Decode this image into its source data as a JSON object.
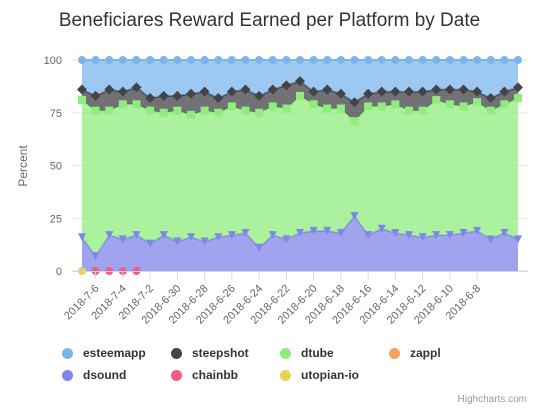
{
  "chart_data": {
    "type": "area",
    "stacking": "percent",
    "title": "Beneficiares Reward Earned per Platform by Date",
    "ylabel": "Percent",
    "ylim": [
      0,
      100
    ],
    "yticks": [
      "0",
      "25",
      "50",
      "75",
      "100"
    ],
    "xtick_labels": [
      "2018-7-6",
      "2018-7-4",
      "2018-7-2",
      "2018-6-30",
      "2018-6-28",
      "2018-6-26",
      "2018-6-24",
      "2018-6-22",
      "2018-6-20",
      "2018-6-18",
      "2018-6-16",
      "2018-6-14",
      "2018-6-12",
      "2018-6-10",
      "2018-6-8"
    ],
    "grid": true,
    "legend_position": "bottom",
    "series": [
      {
        "name": "dsound",
        "color": "#8085e9",
        "marker": "triangle-down",
        "values": [
          16,
          7,
          17,
          15,
          17,
          13,
          17,
          14,
          16,
          14,
          16,
          17,
          18,
          11,
          17,
          15,
          18,
          19,
          19,
          18,
          26,
          17,
          20,
          18,
          17,
          16,
          17,
          17,
          18,
          19,
          15,
          18,
          15
        ]
      },
      {
        "name": "dtube",
        "color": "#90ed7d",
        "marker": "square",
        "values": [
          65,
          69,
          59,
          64,
          62,
          63,
          58,
          62,
          58,
          62,
          59,
          61,
          58,
          64,
          61,
          62,
          65,
          60,
          58,
          59,
          45,
          61,
          58,
          61,
          59,
          60,
          64,
          62,
          60,
          61,
          61,
          61,
          67
        ]
      },
      {
        "name": "steepshot",
        "color": "#434348",
        "marker": "diamond",
        "values": [
          5,
          7,
          10,
          6,
          8,
          6,
          8,
          7,
          10,
          9,
          7,
          7,
          10,
          8,
          8,
          11,
          7,
          6,
          9,
          7,
          9,
          6,
          7,
          6,
          9,
          9,
          5,
          7,
          8,
          5,
          6,
          6,
          5
        ]
      },
      {
        "name": "esteemapp",
        "color": "#7cb5ec",
        "marker": "circle",
        "values": [
          14,
          17,
          14,
          15,
          13,
          18,
          17,
          17,
          16,
          15,
          18,
          15,
          14,
          17,
          14,
          12,
          10,
          15,
          14,
          16,
          20,
          16,
          15,
          15,
          15,
          15,
          14,
          14,
          14,
          15,
          18,
          15,
          13
        ]
      },
      {
        "name": "zappl",
        "color": "#f7a35c",
        "marker": "circle",
        "values": []
      },
      {
        "name": "chainbb",
        "color": "#f15c80",
        "marker": "circle",
        "values": [
          null,
          0,
          0,
          0,
          0
        ]
      },
      {
        "name": "utopian-io",
        "color": "#e4d354",
        "marker": "circle",
        "values": [
          0
        ]
      }
    ],
    "legend_order": [
      "esteemapp",
      "steepshot",
      "dtube",
      "zappl",
      "dsound",
      "chainbb",
      "utopian-io"
    ]
  },
  "credits": "Highcharts.com"
}
